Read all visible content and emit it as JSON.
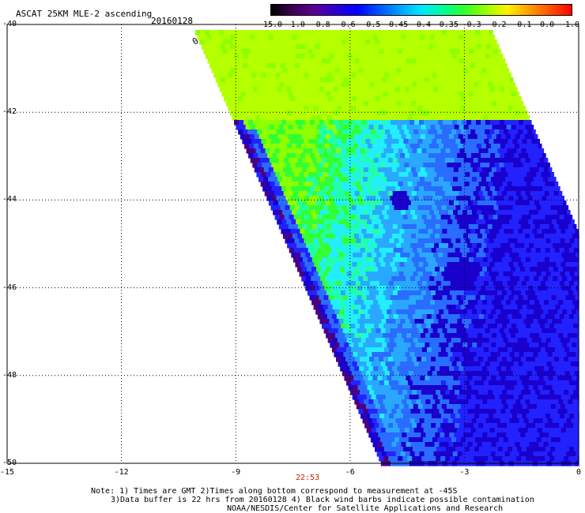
{
  "header": {
    "title": "ASCAT 25KM MLE-2 ascending",
    "date": "20160128"
  },
  "colorbar": {
    "labels": [
      "-15.0",
      "-1.0",
      "-0.8",
      "-0.6",
      "-0.5",
      "-0.45",
      "-0.4",
      "-0.35",
      "-0.3",
      "-0.2",
      "-0.1",
      "0.0",
      "1.0"
    ],
    "gradient": [
      "#000000",
      "#3c0050",
      "#5a0096",
      "#2d00d2",
      "#0000ff",
      "#0050ff",
      "#00a0ff",
      "#00e6ff",
      "#00ff96",
      "#32ff32",
      "#96ff00",
      "#fff000",
      "#ffa000",
      "#ff5000",
      "#ff0000"
    ]
  },
  "axes": {
    "y_labels": [
      "-40",
      "-42",
      "-44",
      "-46",
      "-48",
      "-50"
    ],
    "x_labels": [
      "-15",
      "-12",
      "-9",
      "-6",
      "-3",
      "0"
    ],
    "lon_range": [
      -15,
      0
    ],
    "lat_range": [
      -50,
      -40
    ]
  },
  "swath": {
    "pass_time": "22:53",
    "barb_label": "0",
    "palette": {
      "dark_purple": "#4b0082",
      "deep_blue": "#1a00cc",
      "blue": "#2222ff",
      "mid_blue": "#2a6cff",
      "sky_blue": "#2aa8ff",
      "cyan": "#22eeff",
      "teal_green": "#22ffaa",
      "green": "#33ff33",
      "lime": "#8cff00",
      "yellow_green": "#b4ff00"
    }
  },
  "notes": {
    "line1": "Note: 1) Times are GMT 2)Times along bottom correspond to measurement at -45S",
    "line2": "3)Data buffer is 22 hrs from 20160128 4) Black wind barbs indicate possible contamination",
    "line3": "NOAA/NESDIS/Center for Satellite Applications and Research"
  }
}
